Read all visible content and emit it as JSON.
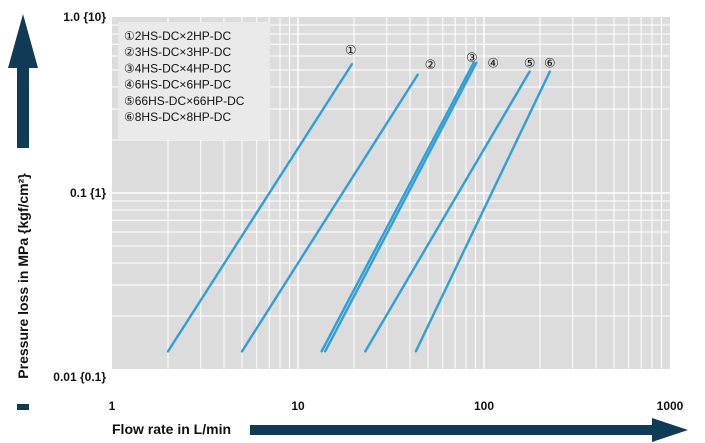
{
  "chart_data": {
    "type": "line",
    "title": "",
    "xlabel": "Flow rate in L/min",
    "ylabel": "Pressure loss in MPa {kgf/cm²}",
    "x_scale": "log",
    "y_scale": "log",
    "xlim": [
      1,
      1000
    ],
    "ylim": [
      0.01,
      1.0
    ],
    "grid": true,
    "legend_position": "top-left",
    "x_ticks": [
      {
        "value": 1,
        "label": "1"
      },
      {
        "value": 10,
        "label": "10"
      },
      {
        "value": 100,
        "label": "100"
      },
      {
        "value": 1000,
        "label": "1000"
      }
    ],
    "y_ticks": [
      {
        "value": 0.01,
        "label": "0.01 {0.1}"
      },
      {
        "value": 0.1,
        "label": "0.1 {1}"
      },
      {
        "value": 1.0,
        "label": "1.0 {10}"
      }
    ],
    "line_color": "#2f9fd6",
    "series": [
      {
        "marker": "①",
        "name": "2HS-DC×2HP-DC",
        "points": [
          [
            2.0,
            0.0126
          ],
          [
            19.5,
            0.54
          ]
        ]
      },
      {
        "marker": "②",
        "name": "3HS-DC×3HP-DC",
        "points": [
          [
            5.0,
            0.0126
          ],
          [
            44.0,
            0.47
          ]
        ]
      },
      {
        "marker": "③",
        "name": "4HS-DC×4HP-DC",
        "points": [
          [
            13.4,
            0.0126
          ],
          [
            88.0,
            0.55
          ]
        ]
      },
      {
        "marker": "④",
        "name": "6HS-DC×6HP-DC",
        "points": [
          [
            14.0,
            0.0126
          ],
          [
            91.0,
            0.55
          ]
        ]
      },
      {
        "marker": "⑤",
        "name": "66HS-DC×66HP-DC",
        "points": [
          [
            23.0,
            0.0126
          ],
          [
            176.0,
            0.49
          ]
        ]
      },
      {
        "marker": "⑥",
        "name": "8HS-DC×8HP-DC",
        "points": [
          [
            43.0,
            0.0126
          ],
          [
            226.0,
            0.49
          ]
        ]
      }
    ],
    "series_label_positions": [
      {
        "marker": "①",
        "x": 19.2,
        "y": 0.64
      },
      {
        "marker": "②",
        "x": 51.5,
        "y": 0.53
      },
      {
        "marker": "③",
        "x": 86.0,
        "y": 0.58
      },
      {
        "marker": "④",
        "x": 112.0,
        "y": 0.54
      },
      {
        "marker": "⑤",
        "x": 176.0,
        "y": 0.54
      },
      {
        "marker": "⑥",
        "x": 226.0,
        "y": 0.54
      }
    ]
  }
}
